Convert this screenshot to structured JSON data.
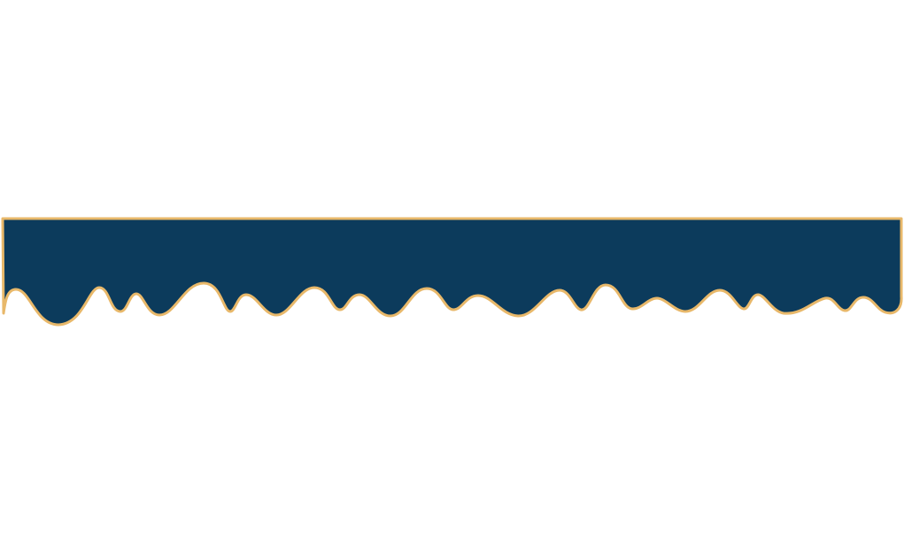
{
  "banner": {
    "shape": "dripping-scalloped-banner",
    "fill_color": "#0c3b5c",
    "outline_color": "#e8b86a"
  }
}
